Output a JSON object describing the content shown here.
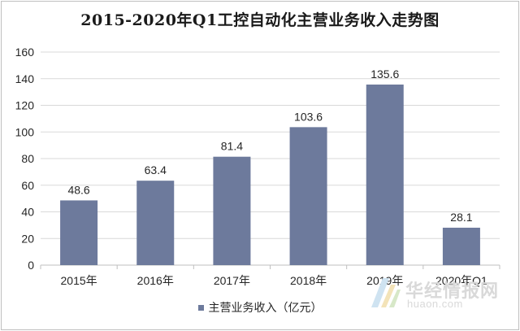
{
  "chart_data": {
    "type": "bar",
    "title": "2015-2020年Q1工控自动化主营业务收入走势图",
    "categories": [
      "2015年",
      "2016年",
      "2017年",
      "2018年",
      "2019年",
      "2020年Q1"
    ],
    "series": [
      {
        "name": "主营业务收入（亿元）",
        "values": [
          48.6,
          63.4,
          81.4,
          103.6,
          135.6,
          28.1
        ],
        "color": "#6d7a9c"
      }
    ],
    "data_labels": [
      "48.6",
      "63.4",
      "81.4",
      "103.6",
      "135.6",
      "28.1"
    ],
    "ylim": [
      0,
      160
    ],
    "yticks": [
      0,
      20,
      40,
      60,
      80,
      100,
      120,
      140,
      160
    ],
    "grid": true,
    "legend_position": "bottom",
    "xlabel": "",
    "ylabel": ""
  },
  "legend": {
    "label": "主营业务收入（亿元）"
  },
  "watermark": {
    "name": "华经情报网",
    "url": "huaon.com"
  },
  "colors": {
    "bar": "#6d7a9c",
    "grid": "#d9d9d9",
    "axis": "#bfbfbf",
    "text": "#262626"
  }
}
